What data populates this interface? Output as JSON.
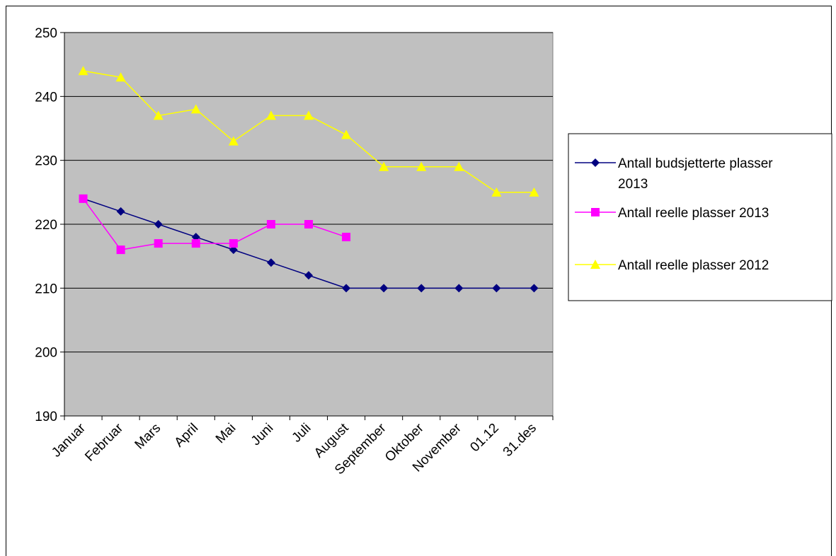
{
  "chart_data": {
    "type": "line",
    "categories": [
      "Januar",
      "Februar",
      "Mars",
      "April",
      "Mai",
      "Juni",
      "Juli",
      "August",
      "September",
      "Oktober",
      "November",
      "01.12",
      "31.des"
    ],
    "series": [
      {
        "name": "Antall budsjetterte plasser 2013",
        "name_lines": [
          "Antall budsjetterte plasser",
          "2013"
        ],
        "color": "#000080",
        "marker": "diamond",
        "values": [
          224,
          222,
          220,
          218,
          216,
          214,
          212,
          210,
          210,
          210,
          210,
          210,
          210
        ]
      },
      {
        "name": "Antall reelle plasser 2013",
        "name_lines": [
          "Antall reelle plasser 2013"
        ],
        "color": "#ff00ff",
        "marker": "square",
        "values": [
          224,
          216,
          217,
          217,
          217,
          220,
          220,
          218,
          null,
          null,
          null,
          null,
          null
        ]
      },
      {
        "name": "Antall reelle plasser 2012",
        "name_lines": [
          "Antall reelle plasser 2012"
        ],
        "color": "#ffff00",
        "marker": "triangle",
        "values": [
          244,
          243,
          237,
          238,
          233,
          237,
          237,
          234,
          229,
          229,
          229,
          225,
          225
        ]
      }
    ],
    "title": "",
    "xlabel": "",
    "ylabel": "",
    "ylim": [
      190,
      250
    ],
    "ytick_step": 10,
    "grid": true,
    "plot_background": "#c0c0c0",
    "legend_position": "right"
  }
}
